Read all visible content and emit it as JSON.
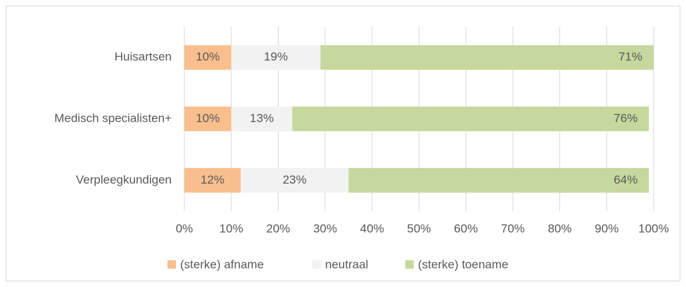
{
  "chart_data": {
    "type": "stacked-bar-horizontal",
    "categories": [
      "Huisartsen",
      "Medisch specialisten+",
      "Verpleegkundigen"
    ],
    "series": [
      {
        "name": "(sterke) afname",
        "color": "#f8bf8d",
        "values": [
          10,
          10,
          12
        ],
        "value_labels": [
          "10%",
          "10%",
          "12%"
        ]
      },
      {
        "name": "neutraal",
        "color": "#f2f2f2",
        "values": [
          19,
          13,
          23
        ],
        "value_labels": [
          "19%",
          "13%",
          "23%"
        ]
      },
      {
        "name": "(sterke) toename",
        "color": "#c5d89d",
        "values": [
          71,
          76,
          64
        ],
        "value_labels": [
          "71%",
          "76%",
          "64%"
        ]
      }
    ],
    "xlim": [
      0,
      100
    ],
    "xticks": [
      {
        "value": 0,
        "label": "0%"
      },
      {
        "value": 10,
        "label": "10%"
      },
      {
        "value": 20,
        "label": "20%"
      },
      {
        "value": 30,
        "label": "30%"
      },
      {
        "value": 40,
        "label": "40%"
      },
      {
        "value": 50,
        "label": "50%"
      },
      {
        "value": 60,
        "label": "60%"
      },
      {
        "value": 70,
        "label": "70%"
      },
      {
        "value": 80,
        "label": "80%"
      },
      {
        "value": 90,
        "label": "90%"
      },
      {
        "value": 100,
        "label": "100%"
      }
    ],
    "grid": true,
    "legend": "bottom"
  }
}
